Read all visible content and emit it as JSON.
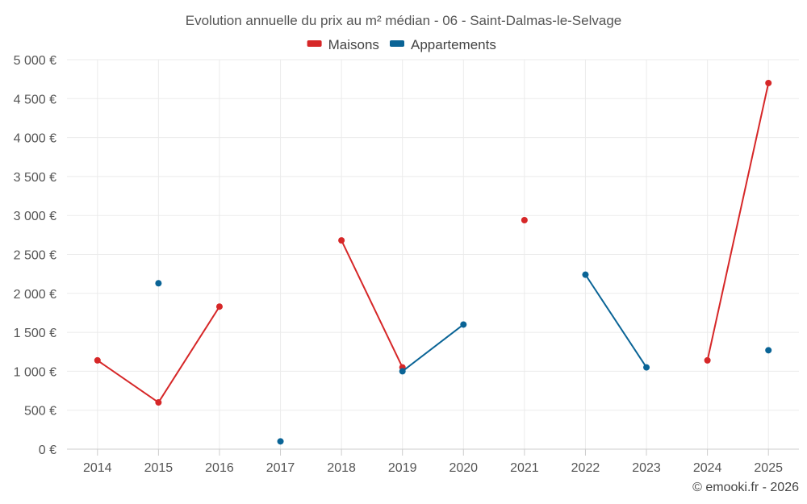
{
  "chart_data": {
    "type": "line",
    "title": "Evolution annuelle du prix au m² médian - 06 - Saint-Dalmas-le-Selvage",
    "xlabel": "",
    "ylabel": "",
    "categories": [
      "2014",
      "2015",
      "2016",
      "2017",
      "2018",
      "2019",
      "2020",
      "2021",
      "2022",
      "2023",
      "2024",
      "2025"
    ],
    "ylim": [
      0,
      5000
    ],
    "y_ticks": [
      0,
      500,
      1000,
      1500,
      2000,
      2500,
      3000,
      3500,
      4000,
      4500,
      5000
    ],
    "y_tick_labels": [
      "0 €",
      "500 €",
      "1 000 €",
      "1 500 €",
      "2 000 €",
      "2 500 €",
      "3 000 €",
      "3 500 €",
      "4 000 €",
      "4 500 €",
      "5 000 €"
    ],
    "grid": true,
    "legend_position": "top-center",
    "series": [
      {
        "name": "Maisons",
        "color": "#d62728",
        "values": [
          1140,
          600,
          1830,
          null,
          2680,
          1050,
          null,
          2940,
          null,
          null,
          1140,
          4700
        ]
      },
      {
        "name": "Appartements",
        "color": "#0a6496",
        "values": [
          null,
          2130,
          null,
          100,
          null,
          1000,
          1600,
          null,
          2240,
          1050,
          null,
          1270
        ]
      }
    ]
  },
  "credit": "© emooki.fr - 2026"
}
